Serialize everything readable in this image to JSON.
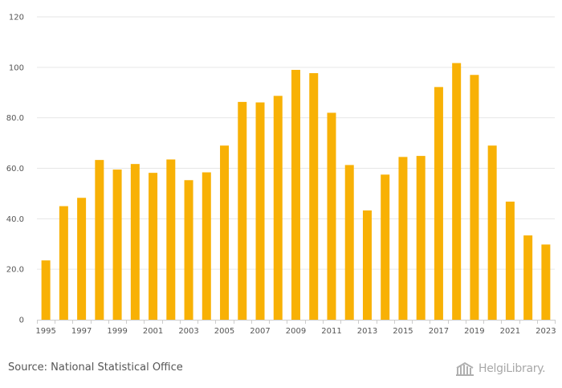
{
  "chart_data": {
    "type": "bar",
    "title": "",
    "xlabel": "",
    "ylabel": "",
    "categories": [
      "1995",
      "1996",
      "1997",
      "1998",
      "1999",
      "2000",
      "2001",
      "2002",
      "2003",
      "2004",
      "2005",
      "2006",
      "2007",
      "2008",
      "2009",
      "2010",
      "2011",
      "2012",
      "2013",
      "2014",
      "2015",
      "2016",
      "2017",
      "2018",
      "2019",
      "2020",
      "2021",
      "2022",
      "2023"
    ],
    "x_tick_labels": [
      "1995",
      "1997",
      "1999",
      "2001",
      "2003",
      "2005",
      "2007",
      "2009",
      "2011",
      "2013",
      "2015",
      "2017",
      "2019",
      "2021",
      "2023"
    ],
    "values": [
      23.5,
      45.0,
      48.3,
      63.3,
      59.5,
      61.7,
      58.2,
      63.5,
      55.3,
      58.4,
      69.0,
      86.3,
      86.1,
      88.7,
      99.0,
      97.7,
      82.0,
      61.3,
      43.3,
      57.5,
      64.5,
      64.9,
      92.2,
      101.7,
      97.0,
      69.0,
      46.8,
      33.4,
      29.8
    ],
    "y_ticks": [
      "0",
      "20.0",
      "40.0",
      "60.0",
      "80.0",
      "100",
      "120"
    ],
    "ylim": [
      0,
      120
    ],
    "grid": true,
    "bar_color": "#f8b105"
  },
  "footer": {
    "source": "Source: National Statistical Office",
    "logo_text": "HelgiLibrary."
  }
}
